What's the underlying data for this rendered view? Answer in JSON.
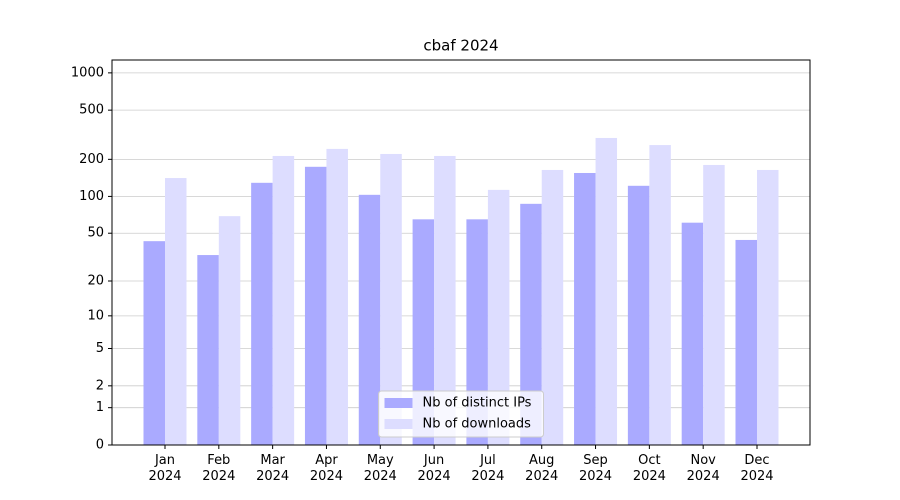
{
  "chart_data": {
    "type": "bar",
    "title": "cbaf 2024",
    "categories": [
      "Jan\n2024",
      "Feb\n2024",
      "Mar\n2024",
      "Apr\n2024",
      "May\n2024",
      "Jun\n2024",
      "Jul\n2024",
      "Aug\n2024",
      "Sep\n2024",
      "Oct\n2024",
      "Nov\n2024",
      "Dec\n2024"
    ],
    "series": [
      {
        "name": "Nb of distinct IPs",
        "color": "#aaaaff",
        "values": [
          43,
          33,
          129,
          174,
          103,
          65,
          65,
          87,
          155,
          122,
          61,
          44
        ]
      },
      {
        "name": "Nb of downloads",
        "color": "#ddddff",
        "values": [
          141,
          69,
          213,
          243,
          221,
          213,
          113,
          164,
          298,
          261,
          180,
          164
        ]
      }
    ],
    "yscale": "log1p",
    "ylim": [
      0,
      1270
    ],
    "yticks": [
      0,
      1,
      2,
      5,
      10,
      20,
      50,
      100,
      200,
      500,
      1000
    ],
    "grid": true,
    "legend": "lower center"
  }
}
